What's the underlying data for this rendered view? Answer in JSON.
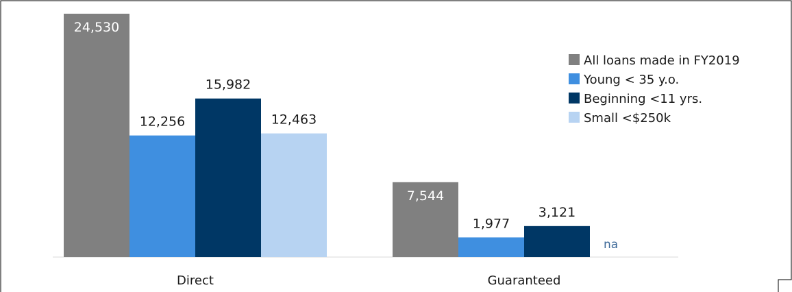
{
  "chart_data": {
    "type": "bar",
    "title": "",
    "xlabel": "",
    "ylabel": "",
    "ylim": [
      0,
      24530
    ],
    "grid": false,
    "legend_position": "right",
    "categories": [
      "Direct",
      "Guaranteed"
    ],
    "series": [
      {
        "name": "All loans made in FY2019",
        "color": "#808080",
        "values": [
          24530,
          7544
        ],
        "labels": [
          "24,530",
          "7,544"
        ]
      },
      {
        "name": "Young  < 35 y.o.",
        "color": "#3f8fe0",
        "values": [
          12256,
          1977
        ],
        "labels": [
          "12,256",
          "1,977"
        ]
      },
      {
        "name": "Beginning <11 yrs.",
        "color": "#003765",
        "values": [
          15982,
          3121
        ],
        "labels": [
          "15,982",
          "3,121"
        ]
      },
      {
        "name": "Small <$250k",
        "color": "#b7d3f2",
        "values": [
          12463,
          null
        ],
        "labels": [
          "12,463",
          "na"
        ]
      }
    ]
  }
}
